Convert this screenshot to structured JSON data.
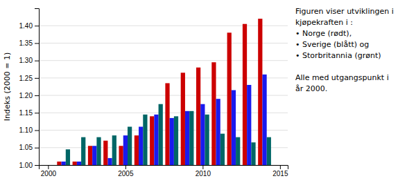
{
  "chart_data": {
    "type": "bar",
    "y_label": "Indeks (2000 = 1)",
    "x": [
      2001,
      2002,
      2003,
      2004,
      2005,
      2006,
      2007,
      2008,
      2009,
      2010,
      2011,
      2012,
      2013,
      2014
    ],
    "series": [
      {
        "color": "#cc0000",
        "values": [
          1.01,
          1.01,
          1.055,
          1.07,
          1.055,
          1.085,
          1.14,
          1.235,
          1.265,
          1.28,
          1.295,
          1.38,
          1.405,
          1.42
        ]
      },
      {
        "color": "#1a1aee",
        "values": [
          1.01,
          1.01,
          1.055,
          1.02,
          1.085,
          1.11,
          1.145,
          1.135,
          1.155,
          1.175,
          1.19,
          1.215,
          1.23,
          1.26
        ]
      },
      {
        "color": "#006666",
        "values": [
          1.045,
          1.08,
          1.08,
          1.085,
          1.11,
          1.145,
          1.175,
          1.14,
          1.155,
          1.145,
          1.09,
          1.08,
          1.065,
          1.08
        ]
      }
    ],
    "xlim": [
      1999.4,
      2015.5
    ],
    "xticks": [
      2000,
      2005,
      2010,
      2015
    ],
    "ylim": [
      1.0,
      1.45
    ],
    "yticks": [
      {
        "value": 1.0,
        "label": "1.00"
      },
      1.05,
      {
        "value": 1.1,
        "label": "1.10"
      },
      1.15,
      {
        "value": 1.2,
        "label": "1.20"
      },
      1.25,
      {
        "value": 1.3,
        "label": "1.30"
      },
      1.35,
      {
        "value": 1.4,
        "label": "1.40"
      }
    ],
    "grid": true,
    "annotations": [
      [
        "Figuren viser utviklingen i",
        "kjøpekraften i :",
        "•  Norge (rødt),",
        "•  Sverige (blått) og",
        "•  Storbritannia (grønt)"
      ],
      [
        "Alle med utgangspunkt i",
        "år 2000."
      ]
    ]
  }
}
